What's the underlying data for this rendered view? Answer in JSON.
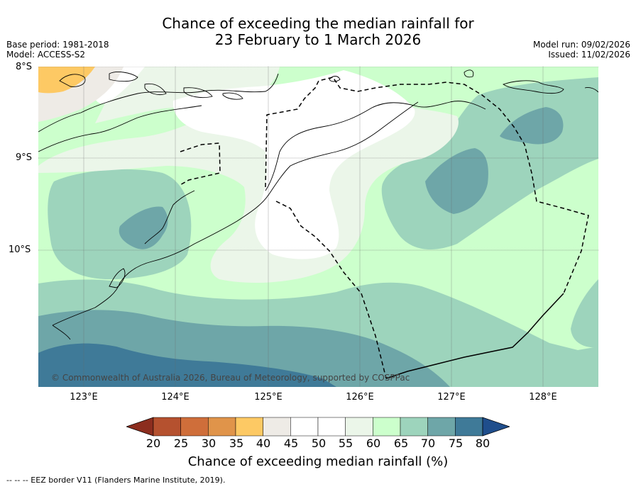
{
  "title": {
    "line1": "Chance of exceeding the median rainfall for",
    "line2": "23 February to 1 March 2026"
  },
  "meta": {
    "base_period": "Base period: 1981-2018",
    "model": "Model: ACCESS-S2",
    "model_run": "Model run: 09/02/2026",
    "issued": "Issued: 11/02/2026"
  },
  "axes": {
    "lat_labels": [
      "8°S",
      "9°S",
      "10°S"
    ],
    "lon_labels": [
      "123°E",
      "124°E",
      "125°E",
      "126°E",
      "127°E",
      "128°E"
    ]
  },
  "copyright": "© Commonwealth of Australia 2026, Bureau of Meteorology, supported by COSPPac",
  "colorbar": {
    "title": "Chance of exceeding median rainfall (%)",
    "ticks": [
      "20",
      "25",
      "30",
      "35",
      "40",
      "45",
      "50",
      "55",
      "60",
      "65",
      "70",
      "75",
      "80"
    ],
    "colors": [
      "#8c2d1e",
      "#b5512f",
      "#cf6e3a",
      "#e0944a",
      "#fdc964",
      "#eeebe6",
      "#ffffff",
      "#ffffff",
      "#ebf6e9",
      "#ccffcc",
      "#9dd4bc",
      "#6ea6a8",
      "#3f7a98",
      "#1f4e8c"
    ]
  },
  "footnote": "-- -- -- EEZ border V11 (Flanders Marine Institute, 2019).",
  "colors": {
    "c35_40": "#fdc964",
    "c40_45": "#eeebe6",
    "c50_55": "#ffffff",
    "c55_60": "#ebf6e9",
    "c60_65": "#ccffcc",
    "c65_70": "#9dd4bc",
    "c70_75": "#6ea6a8",
    "c75_80": "#3f7a98"
  }
}
